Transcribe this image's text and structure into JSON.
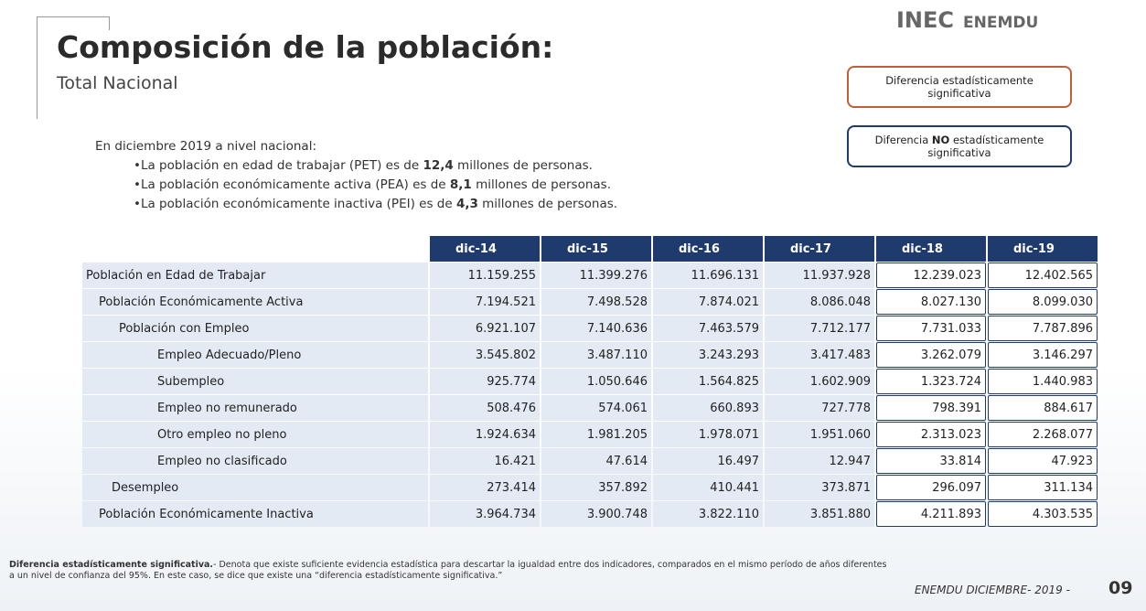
{
  "header": {
    "title": "Composición de la población:",
    "subtitle": "Total Nacional",
    "logo": "INEC",
    "logo_product": "ENEMDU"
  },
  "legend": {
    "significant": "Diferencia estadísticamente significativa",
    "not_significant": {
      "before": "Diferencia ",
      "bold": "NO",
      "after": " estadísticamente  significativa"
    }
  },
  "intro": {
    "lead": "En diciembre 2019 a nivel nacional:",
    "bullets": [
      {
        "before": "La población en edad de trabajar (PET) es de ",
        "bold": "12,4",
        "after": " millones de personas."
      },
      {
        "before": "La población económicamente activa (PEA) es de ",
        "bold": "8,1",
        "after": " millones de personas."
      },
      {
        "before": "La población económicamente inactiva (PEI) es de ",
        "bold": "4,3",
        "after": " millones de personas."
      }
    ]
  },
  "table": {
    "columns": [
      "dic-14",
      "dic-15",
      "dic-16",
      "dic-17",
      "dic-18",
      "dic-19"
    ],
    "rows": [
      [
        "Población en Edad de Trabajar",
        "11.159.255",
        "11.399.276",
        "11.696.131",
        "11.937.928",
        "12.239.023",
        "12.402.565"
      ],
      [
        "Población Económicamente Activa",
        "7.194.521",
        "7.498.528",
        "7.874.021",
        "8.086.048",
        "8.027.130",
        "8.099.030"
      ],
      [
        "Población con Empleo",
        "6.921.107",
        "7.140.636",
        "7.463.579",
        "7.712.177",
        "7.731.033",
        "7.787.896"
      ],
      [
        "Empleo Adecuado/Pleno",
        "3.545.802",
        "3.487.110",
        "3.243.293",
        "3.417.483",
        "3.262.079",
        "3.146.297"
      ],
      [
        "Subempleo",
        "925.774",
        "1.050.646",
        "1.564.825",
        "1.602.909",
        "1.323.724",
        "1.440.983"
      ],
      [
        "Empleo no remunerado",
        "508.476",
        "574.061",
        "660.893",
        "727.778",
        "798.391",
        "884.617"
      ],
      [
        "Otro empleo no pleno",
        "1.924.634",
        "1.981.205",
        "1.978.071",
        "1.951.060",
        "2.313.023",
        "2.268.077"
      ],
      [
        "Empleo no clasificado",
        "16.421",
        "47.614",
        "16.497",
        "12.947",
        "33.814",
        "47.923"
      ],
      [
        "Desempleo",
        "273.414",
        "357.892",
        "410.441",
        "373.871",
        "296.097",
        "311.134"
      ],
      [
        "Población Económicamente Inactiva",
        "3.964.734",
        "3.900.748",
        "3.822.110",
        "3.851.880",
        "4.211.893",
        "4.303.535"
      ]
    ]
  },
  "footnote": {
    "bold": "Diferencia estadísticamente significativa.",
    "text": "- Denota que existe suficiente evidencia estadística para descartar la igualdad entre dos indicadores, comparados en el mismo período de años diferentes a un nivel de confianza del 95%. En este caso, se dice que existe una “diferencia estadísticamente significativa.”"
  },
  "footer": {
    "label": "ENEMDU DICIEMBRE- 2019 -",
    "page": "09"
  }
}
